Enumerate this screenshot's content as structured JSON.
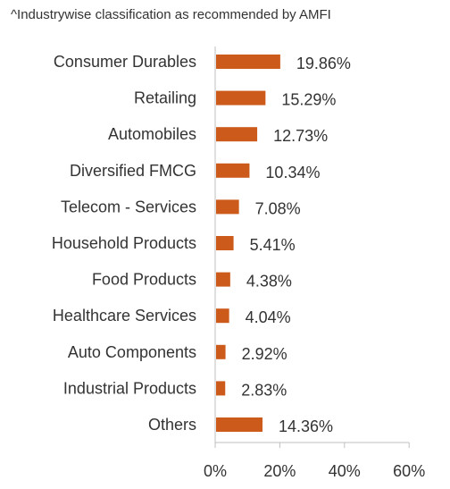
{
  "note": "^Industrywise classification as recommended by AMFI",
  "chart_data": {
    "type": "bar",
    "orientation": "horizontal",
    "title": "",
    "xlabel": "",
    "ylabel": "",
    "categories": [
      "Consumer Durables",
      "Retailing",
      "Automobiles",
      "Diversified FMCG",
      "Telecom - Services",
      "Household Products",
      "Food Products",
      "Healthcare Services",
      "Auto Components",
      "Industrial Products",
      "Others"
    ],
    "values": [
      19.86,
      15.29,
      12.73,
      10.34,
      7.08,
      5.41,
      4.38,
      4.04,
      2.92,
      2.83,
      14.36
    ],
    "value_labels": [
      "19.86%",
      "15.29%",
      "12.73%",
      "10.34%",
      "7.08%",
      "5.41%",
      "4.38%",
      "4.04%",
      "2.92%",
      "2.83%",
      "14.36%"
    ],
    "xlim": [
      0,
      60
    ],
    "x_ticks": [
      0,
      20,
      40,
      60
    ],
    "x_tick_labels": [
      "0%",
      "20%",
      "40%",
      "60%"
    ],
    "grid": false,
    "legend": "none",
    "bar_color": "#cc5a1a",
    "axis_color": "#bfbfbf"
  }
}
